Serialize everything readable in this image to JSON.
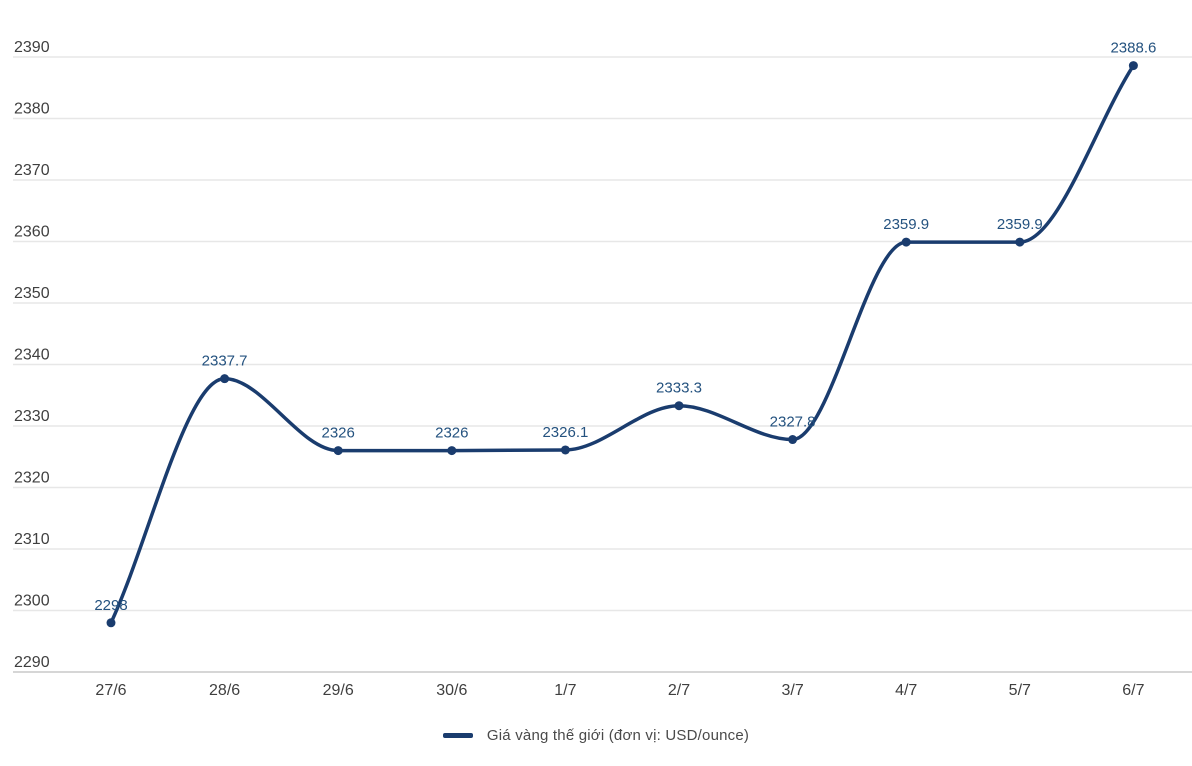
{
  "chart_data": {
    "type": "line",
    "title": "",
    "xlabel": "",
    "ylabel": "",
    "categories": [
      "27/6",
      "28/6",
      "29/6",
      "30/6",
      "1/7",
      "2/7",
      "3/7",
      "4/7",
      "5/7",
      "6/7"
    ],
    "series": [
      {
        "name": "Giá vàng thế giới (đơn vị: USD/ounce)",
        "values": [
          2298,
          2337.7,
          2326,
          2326,
          2326.1,
          2333.3,
          2327.8,
          2359.9,
          2359.9,
          2388.6
        ],
        "data_labels": [
          "2298",
          "2337.7",
          "2326",
          "2326",
          "2326.1",
          "2333.3",
          "2327.8",
          "2359.9",
          "2359.9",
          "2388.6"
        ]
      }
    ],
    "ylim": [
      2290,
      2390
    ],
    "ytick_step": 10,
    "yticks": [
      2290,
      2300,
      2310,
      2320,
      2330,
      2340,
      2350,
      2360,
      2370,
      2380,
      2390
    ],
    "grid": true,
    "curve": "smooth-monotone",
    "legend_position": "bottom",
    "colors": {
      "line": "#1a3c6e",
      "point": "#1a3c6e",
      "data_label": "#24527f",
      "axis_label": "#3f3f3f",
      "gridline": "#e7e7e7",
      "axis_line": "#c9c9c9",
      "legend_text": "#4a4a4a",
      "background": "#ffffff"
    }
  },
  "legend": {
    "label": "Giá vàng thế giới (đơn vị: USD/ounce)"
  }
}
